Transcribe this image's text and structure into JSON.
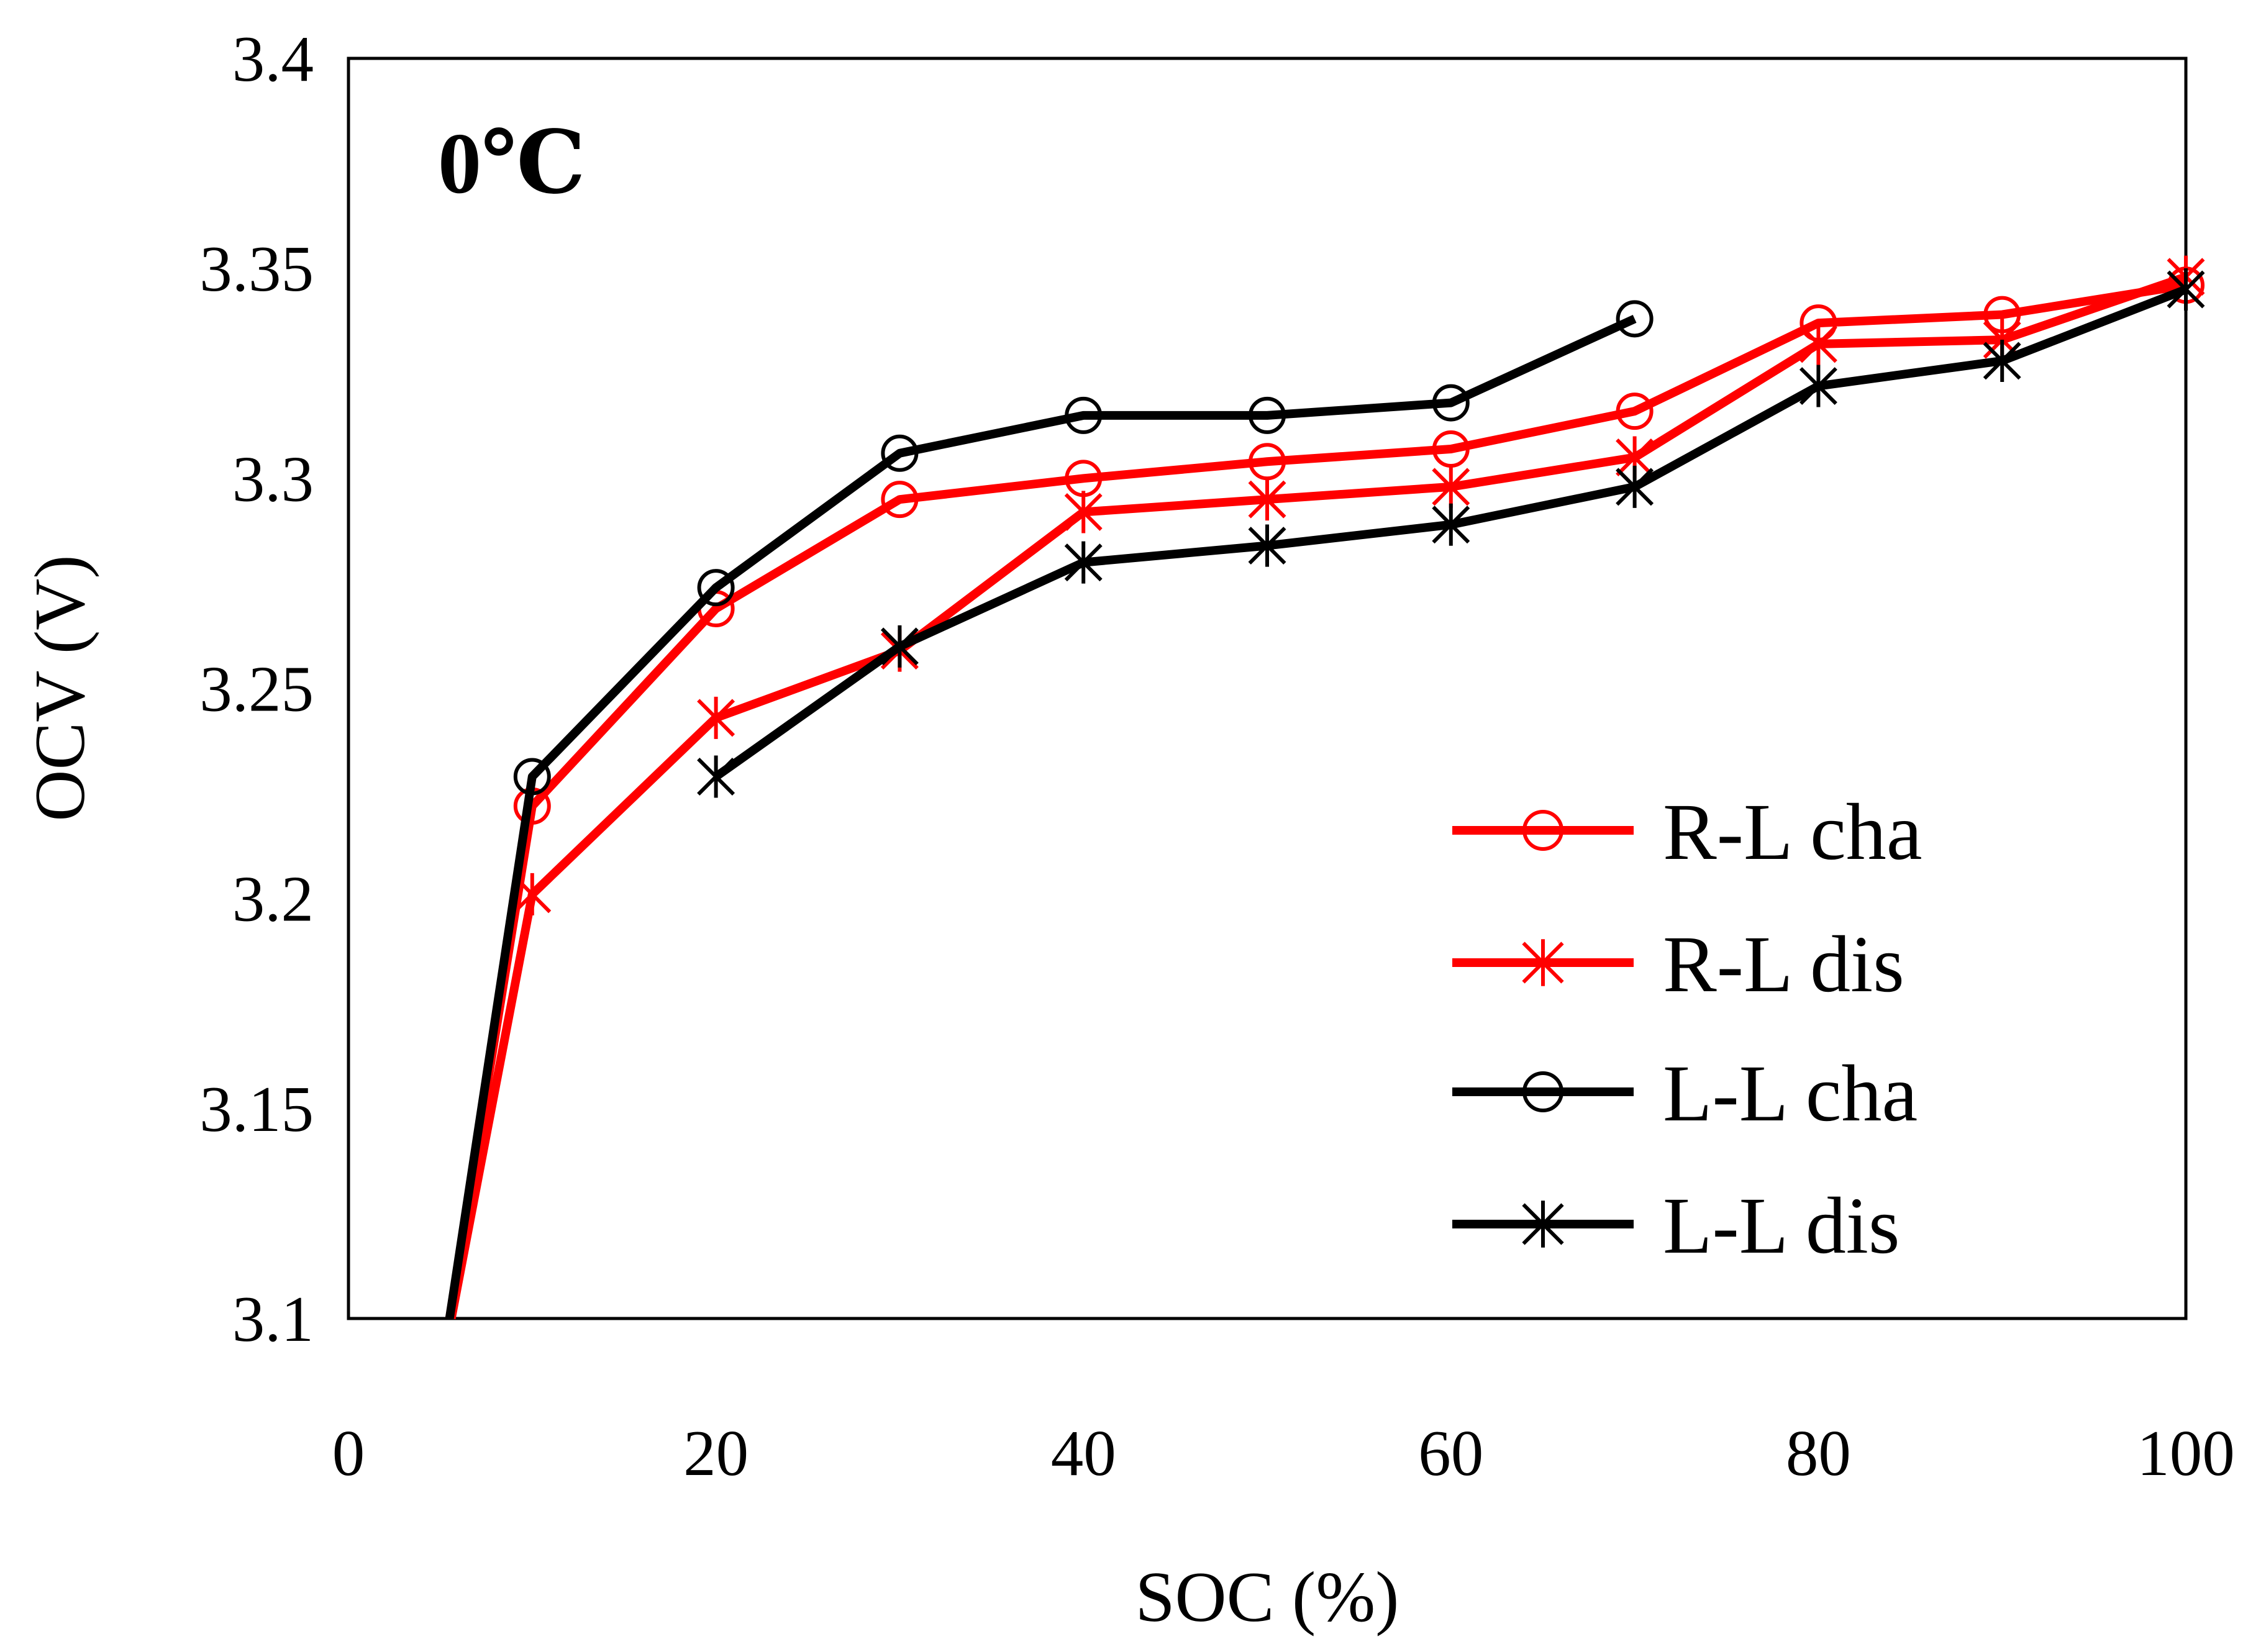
{
  "chart_data": {
    "type": "line",
    "annotation": "0℃",
    "xlabel": "SOC (%)",
    "ylabel": "OCV (V)",
    "xlim": [
      0,
      100
    ],
    "ylim": [
      3.1,
      3.4
    ],
    "xticks": [
      "0",
      "20",
      "40",
      "60",
      "80",
      "100"
    ],
    "yticks": [
      "3.1",
      "3.15",
      "3.2",
      "3.25",
      "3.3",
      "3.35",
      "3.4"
    ],
    "grid": false,
    "legend_position": "bottom-right",
    "series": [
      {
        "name": "R-L cha",
        "color": "#ff0000",
        "marker": "circle",
        "x": [
          10,
          20,
          30,
          40,
          50,
          60,
          70,
          80,
          90,
          100
        ],
        "y": [
          3.222,
          3.269,
          3.295,
          3.3,
          3.304,
          3.307,
          3.316,
          3.337,
          3.339,
          3.346
        ],
        "lead_in": [
          5.5,
          3.1
        ]
      },
      {
        "name": "R-L dis",
        "color": "#ff0000",
        "marker": "asterisk",
        "x": [
          10,
          20,
          30,
          40,
          50,
          60,
          70,
          80,
          90,
          100
        ],
        "y": [
          3.201,
          3.243,
          3.259,
          3.292,
          3.295,
          3.298,
          3.305,
          3.332,
          3.333,
          3.348
        ],
        "lead_in": [
          5.6,
          3.1
        ]
      },
      {
        "name": "L-L cha",
        "color": "#000000",
        "marker": "circle",
        "x": [
          10,
          20,
          30,
          40,
          50,
          60,
          70
        ],
        "y": [
          3.229,
          3.274,
          3.306,
          3.315,
          3.315,
          3.318,
          3.338
        ],
        "lead_in": [
          5.5,
          3.1
        ]
      },
      {
        "name": "L-L dis",
        "color": "#000000",
        "marker": "asterisk",
        "x": [
          20,
          30,
          40,
          50,
          60,
          70,
          80,
          90,
          100
        ],
        "y": [
          3.229,
          3.26,
          3.28,
          3.284,
          3.289,
          3.298,
          3.322,
          3.328,
          3.345
        ]
      }
    ]
  }
}
